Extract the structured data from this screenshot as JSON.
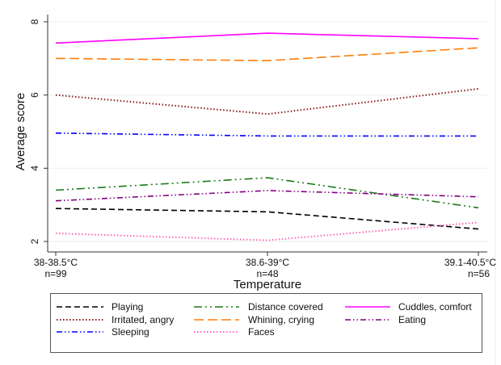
{
  "chart_data": {
    "type": "line",
    "title": "",
    "xlabel": "Temperature",
    "ylabel": "Average score",
    "categories": [
      "38-38.5°C",
      "38.6-39°C",
      "39.1-40.5°C"
    ],
    "category_sublabels": [
      "n=99",
      "n=48",
      "n=56"
    ],
    "ylim": [
      2,
      8
    ],
    "yticks": [
      2,
      4,
      6,
      8
    ],
    "ytick_labels": [
      "2",
      "4",
      "6",
      "8"
    ],
    "grid": true,
    "legend_position": "bottom",
    "series": [
      {
        "name": "Playing",
        "color": "#000000",
        "style": "dash",
        "values": [
          2.9,
          2.81,
          2.34
        ]
      },
      {
        "name": "Distance covered",
        "color": "#1a7a1a",
        "style": "longdash-dot",
        "values": [
          3.4,
          3.74,
          2.92
        ]
      },
      {
        "name": "Cuddles, comfort",
        "color": "#ff00ff",
        "style": "solid",
        "values": [
          7.42,
          7.69,
          7.54
        ]
      },
      {
        "name": "Irritated, angry",
        "color": "#8b1a1a",
        "style": "dot",
        "values": [
          6.0,
          5.48,
          6.17
        ]
      },
      {
        "name": "Whining, crying",
        "color": "#ff7f0e",
        "style": "longdash",
        "values": [
          7.0,
          6.94,
          7.29
        ]
      },
      {
        "name": "Eating",
        "color": "#800080",
        "style": "dash-dot-dot",
        "values": [
          3.11,
          3.39,
          3.22
        ]
      },
      {
        "name": "Sleeping",
        "color": "#0000ff",
        "style": "dash-dot-dot",
        "values": [
          4.96,
          4.88,
          4.88
        ]
      },
      {
        "name": "Faces",
        "color": "#ff66b2",
        "style": "dot",
        "values": [
          2.22,
          2.03,
          2.52
        ]
      }
    ]
  }
}
